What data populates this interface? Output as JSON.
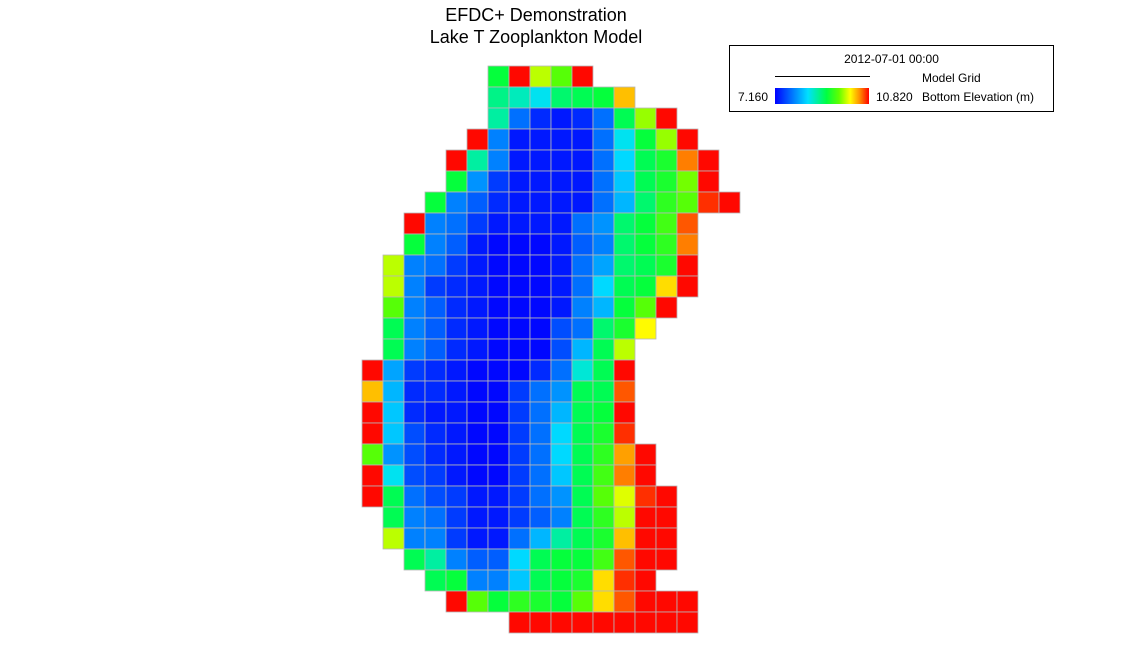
{
  "chart_data": {
    "type": "heatmap",
    "title": "EFDC+ Demonstration",
    "subtitle": "Lake T Zooplankton Model",
    "timestamp": "2012-07-01 00:00",
    "grid_legend_label": "Model Grid",
    "variable_label": "Bottom Elevation (m)",
    "min_label": "7.160",
    "max_label": "10.820",
    "vmin": 7.16,
    "vmax": 10.82,
    "colormap": [
      "#0000ff",
      "#0080ff",
      "#00e0ff",
      "#00ff40",
      "#60ff00",
      "#ffff00",
      "#ff9000",
      "#ff0000"
    ],
    "cell_size": 21,
    "cell_rows": [
      {
        "row": 0,
        "start_col": 6,
        "values": [
          9.2,
          10.8,
          9.9,
          9.6,
          10.8
        ]
      },
      {
        "row": 1,
        "start_col": 6,
        "values": [
          8.9,
          8.7,
          8.5,
          9.0,
          9.1,
          9.2,
          10.3
        ]
      },
      {
        "row": 2,
        "start_col": 6,
        "values": [
          8.8,
          7.8,
          7.4,
          7.3,
          7.4,
          7.8,
          9.1,
          9.8,
          10.8
        ]
      },
      {
        "row": 3,
        "start_col": 5,
        "values": [
          10.8,
          7.9,
          7.3,
          7.3,
          7.3,
          7.3,
          7.8,
          8.5,
          9.2,
          9.8,
          10.8
        ]
      },
      {
        "row": 4,
        "start_col": 4,
        "values": [
          10.8,
          8.8,
          7.9,
          7.3,
          7.3,
          7.3,
          7.3,
          7.8,
          8.4,
          9.1,
          9.3,
          10.5,
          10.8
        ]
      },
      {
        "row": 5,
        "start_col": 4,
        "values": [
          9.2,
          8.0,
          7.5,
          7.3,
          7.3,
          7.3,
          7.3,
          7.8,
          8.3,
          9.1,
          9.3,
          9.7,
          10.8
        ]
      },
      {
        "row": 6,
        "start_col": 3,
        "values": [
          9.2,
          7.9,
          7.7,
          7.4,
          7.3,
          7.3,
          7.3,
          7.3,
          7.8,
          8.2,
          9.0,
          9.4,
          9.6,
          10.7,
          10.8
        ]
      },
      {
        "row": 7,
        "start_col": 2,
        "values": [
          10.8,
          7.9,
          7.8,
          7.5,
          7.3,
          7.3,
          7.3,
          7.3,
          7.8,
          8.0,
          9.0,
          9.2,
          9.5,
          10.6
        ]
      },
      {
        "row": 8,
        "start_col": 2,
        "values": [
          9.2,
          7.9,
          7.7,
          7.3,
          7.2,
          7.2,
          7.2,
          7.3,
          7.7,
          7.9,
          9.0,
          9.2,
          9.4,
          10.5
        ]
      },
      {
        "row": 9,
        "start_col": 1,
        "values": [
          9.9,
          7.9,
          7.8,
          7.5,
          7.3,
          7.2,
          7.2,
          7.2,
          7.3,
          7.8,
          8.1,
          9.0,
          9.1,
          9.3,
          10.8
        ]
      },
      {
        "row": 10,
        "start_col": 1,
        "values": [
          9.9,
          7.9,
          7.5,
          7.4,
          7.3,
          7.2,
          7.2,
          7.2,
          7.3,
          7.8,
          8.4,
          9.1,
          9.2,
          10.2,
          10.8
        ]
      },
      {
        "row": 11,
        "start_col": 1,
        "values": [
          9.6,
          7.9,
          7.7,
          7.4,
          7.3,
          7.2,
          7.2,
          7.2,
          7.3,
          7.9,
          8.2,
          9.2,
          9.6,
          10.8
        ]
      },
      {
        "row": 12,
        "start_col": 1,
        "values": [
          9.1,
          7.9,
          7.7,
          7.4,
          7.3,
          7.2,
          7.2,
          7.2,
          7.6,
          7.8,
          9.0,
          9.3,
          10.1
        ]
      },
      {
        "row": 13,
        "start_col": 1,
        "values": [
          9.1,
          7.9,
          7.7,
          7.4,
          7.3,
          7.2,
          7.2,
          7.2,
          7.6,
          8.2,
          9.1,
          9.9
        ]
      },
      {
        "row": 14,
        "start_col": 0,
        "values": [
          10.8,
          8.1,
          7.5,
          7.4,
          7.3,
          7.2,
          7.2,
          7.2,
          7.4,
          7.8,
          8.6,
          9.1,
          10.8
        ]
      },
      {
        "row": 15,
        "start_col": 0,
        "values": [
          10.3,
          8.2,
          7.4,
          7.4,
          7.3,
          7.2,
          7.2,
          7.5,
          7.8,
          8.0,
          9.1,
          9.1,
          10.6
        ]
      },
      {
        "row": 16,
        "start_col": 0,
        "values": [
          10.8,
          8.3,
          7.4,
          7.3,
          7.3,
          7.2,
          7.2,
          7.5,
          7.8,
          8.2,
          9.1,
          9.2,
          10.8
        ]
      },
      {
        "row": 17,
        "start_col": 0,
        "values": [
          10.8,
          8.3,
          7.6,
          7.4,
          7.3,
          7.2,
          7.2,
          7.5,
          7.8,
          8.4,
          9.1,
          9.3,
          10.7
        ]
      },
      {
        "row": 18,
        "start_col": 0,
        "values": [
          9.6,
          8.0,
          7.6,
          7.4,
          7.3,
          7.2,
          7.2,
          7.5,
          7.8,
          8.4,
          9.1,
          9.4,
          10.4,
          10.8
        ]
      },
      {
        "row": 19,
        "start_col": 0,
        "values": [
          10.8,
          8.5,
          7.6,
          7.5,
          7.3,
          7.2,
          7.2,
          7.5,
          7.8,
          8.3,
          9.1,
          9.5,
          10.5,
          10.8
        ]
      },
      {
        "row": 20,
        "start_col": 0,
        "values": [
          10.8,
          9.1,
          7.8,
          7.6,
          7.5,
          7.3,
          7.3,
          7.5,
          7.8,
          8.0,
          9.1,
          9.6,
          10.0,
          10.7,
          10.8
        ]
      },
      {
        "row": 21,
        "start_col": 1,
        "values": [
          9.1,
          7.9,
          7.8,
          7.5,
          7.3,
          7.3,
          7.5,
          7.7,
          7.9,
          9.1,
          9.4,
          9.9,
          10.8,
          10.8
        ]
      },
      {
        "row": 22,
        "start_col": 1,
        "values": [
          9.9,
          7.9,
          7.9,
          7.5,
          7.3,
          7.3,
          7.8,
          8.2,
          8.8,
          9.1,
          9.3,
          10.3,
          10.8,
          10.8
        ]
      },
      {
        "row": 23,
        "start_col": 2,
        "values": [
          9.1,
          8.8,
          7.9,
          7.7,
          7.7,
          8.4,
          9.1,
          9.2,
          9.2,
          9.5,
          10.6,
          10.8,
          10.8
        ]
      },
      {
        "row": 24,
        "start_col": 3,
        "values": [
          9.1,
          9.2,
          7.9,
          7.9,
          8.3,
          9.1,
          9.2,
          9.3,
          10.2,
          10.7,
          10.8
        ]
      },
      {
        "row": 25,
        "start_col": 4,
        "values": [
          10.8,
          9.6,
          9.2,
          9.4,
          9.3,
          9.2,
          9.6,
          10.2,
          10.6,
          10.8,
          10.8,
          10.8
        ]
      },
      {
        "row": 26,
        "start_col": 7,
        "values": [
          10.8,
          10.8,
          10.8,
          10.8,
          10.8,
          10.8,
          10.8,
          10.8,
          10.8
        ]
      }
    ]
  }
}
